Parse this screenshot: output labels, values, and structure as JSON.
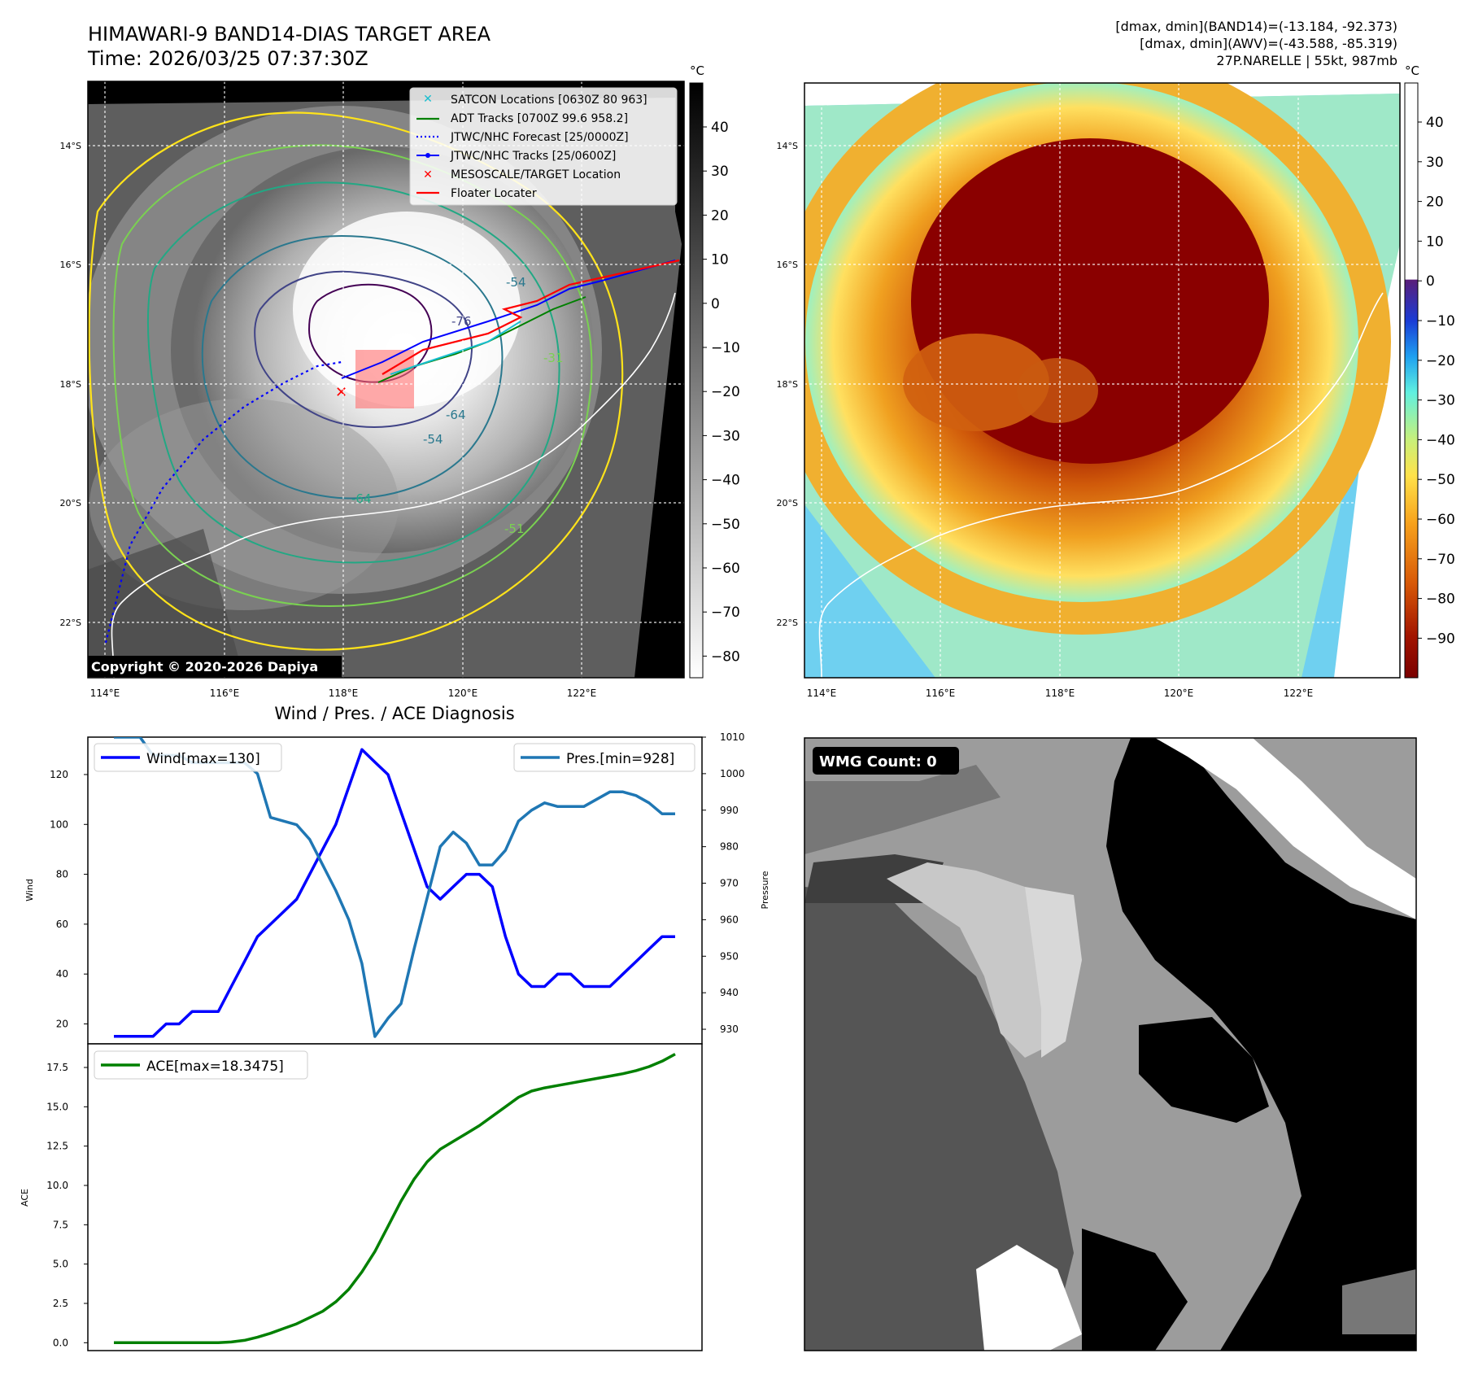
{
  "header": {
    "title_line1": "HIMAWARI-9 BAND14-DIAS TARGET AREA",
    "title_line2": "Time: 2026/03/25 07:37:30Z",
    "info_line1": "[dmax, dmin](BAND14)=(-13.184, -92.373)",
    "info_line2": "[dmax, dmin](AWV)=(-43.588, -85.319)",
    "info_line3": "27P.NARELLE | 55kt, 987mb"
  },
  "map_axes": {
    "lat_labels": [
      "14°S",
      "16°S",
      "18°S",
      "20°S",
      "22°S"
    ],
    "lon_labels": [
      "114°E",
      "116°E",
      "118°E",
      "120°E",
      "122°E"
    ]
  },
  "ir_colorbar": {
    "unit": "°C",
    "ticks": [
      "40",
      "30",
      "20",
      "10",
      "0",
      "−10",
      "−20",
      "−30",
      "−40",
      "−50",
      "−60",
      "−70",
      "−80"
    ]
  },
  "enh_colorbar": {
    "unit": "°C",
    "ticks": [
      "40",
      "30",
      "20",
      "10",
      "0",
      "−10",
      "−20",
      "−30",
      "−40",
      "−50",
      "−60",
      "−70",
      "−80",
      "−90"
    ]
  },
  "legend": {
    "satcon": "SATCON Locations [0630Z 80 963]",
    "adt": "ADT Tracks [0700Z 99.6 958.2]",
    "jtwc_forecast": "JTWC/NHC Forecast [25/0000Z]",
    "jtwc_tracks": "JTWC/NHC Tracks [25/0600Z]",
    "mesoscale": "MESOSCALE/TARGET Location",
    "floater": "Floater Locater"
  },
  "copyright": "Copyright © 2020-2026 Dapiya",
  "contour_labels": [
    "-54",
    "-64",
    "-76",
    "-31",
    "-54",
    "-64",
    "-51"
  ],
  "wmg": {
    "label": "WMG Count: 0"
  },
  "colors": {
    "wind": "#0000ff",
    "pressure": "#1f77b4",
    "ace": "#008000",
    "satcon": "#17becf",
    "adt": "#008000",
    "jtwc": "#0000ff",
    "target": "#ff0000"
  },
  "chart_data": [
    {
      "type": "line",
      "title": "Wind / Pres. / ACE Diagnosis",
      "ylabel": "Wind",
      "ylim": [
        12,
        135
      ],
      "yticks": [
        20,
        40,
        60,
        80,
        100,
        120
      ],
      "legend": "Wind[max=130]",
      "values": [
        15,
        15,
        15,
        15,
        20,
        20,
        25,
        25,
        25,
        35,
        45,
        55,
        60,
        65,
        70,
        80,
        90,
        100,
        115,
        130,
        125,
        120,
        105,
        90,
        75,
        70,
        75,
        80,
        80,
        75,
        55,
        40,
        35,
        35,
        40,
        40,
        35,
        35,
        35,
        40,
        45,
        50,
        55,
        55
      ]
    },
    {
      "type": "line",
      "ylabel": "Pressure",
      "ylim": [
        926,
        1010
      ],
      "yticks": [
        930,
        940,
        950,
        960,
        970,
        980,
        990,
        1000,
        1010
      ],
      "legend": "Pres.[min=928]",
      "values": [
        1010,
        1010,
        1010,
        1005,
        1005,
        1005,
        1003,
        1003,
        1003,
        1003,
        1003,
        1000,
        988,
        987,
        986,
        982,
        975,
        968,
        960,
        948,
        928,
        933,
        937,
        952,
        966,
        980,
        984,
        981,
        975,
        975,
        979,
        987,
        990,
        992,
        991,
        991,
        991,
        993,
        995,
        995,
        994,
        992,
        989,
        989
      ]
    },
    {
      "type": "line",
      "ylabel": "ACE",
      "ylim": [
        -0.5,
        19
      ],
      "yticks": [
        0.0,
        2.5,
        5.0,
        7.5,
        10.0,
        12.5,
        15.0,
        17.5
      ],
      "ytick_labels": [
        "0.0",
        "2.5",
        "5.0",
        "7.5",
        "10.0",
        "12.5",
        "15.0",
        "17.5"
      ],
      "legend": "ACE[max=18.3475]",
      "values": [
        0,
        0,
        0,
        0,
        0,
        0,
        0,
        0,
        0,
        0.05,
        0.15,
        0.35,
        0.6,
        0.9,
        1.2,
        1.6,
        2.0,
        2.6,
        3.4,
        4.5,
        5.8,
        7.4,
        9.0,
        10.4,
        11.5,
        12.3,
        12.8,
        13.3,
        13.8,
        14.4,
        15.0,
        15.6,
        16.0,
        16.2,
        16.35,
        16.5,
        16.65,
        16.8,
        16.95,
        17.1,
        17.3,
        17.55,
        17.9,
        18.35
      ]
    }
  ]
}
